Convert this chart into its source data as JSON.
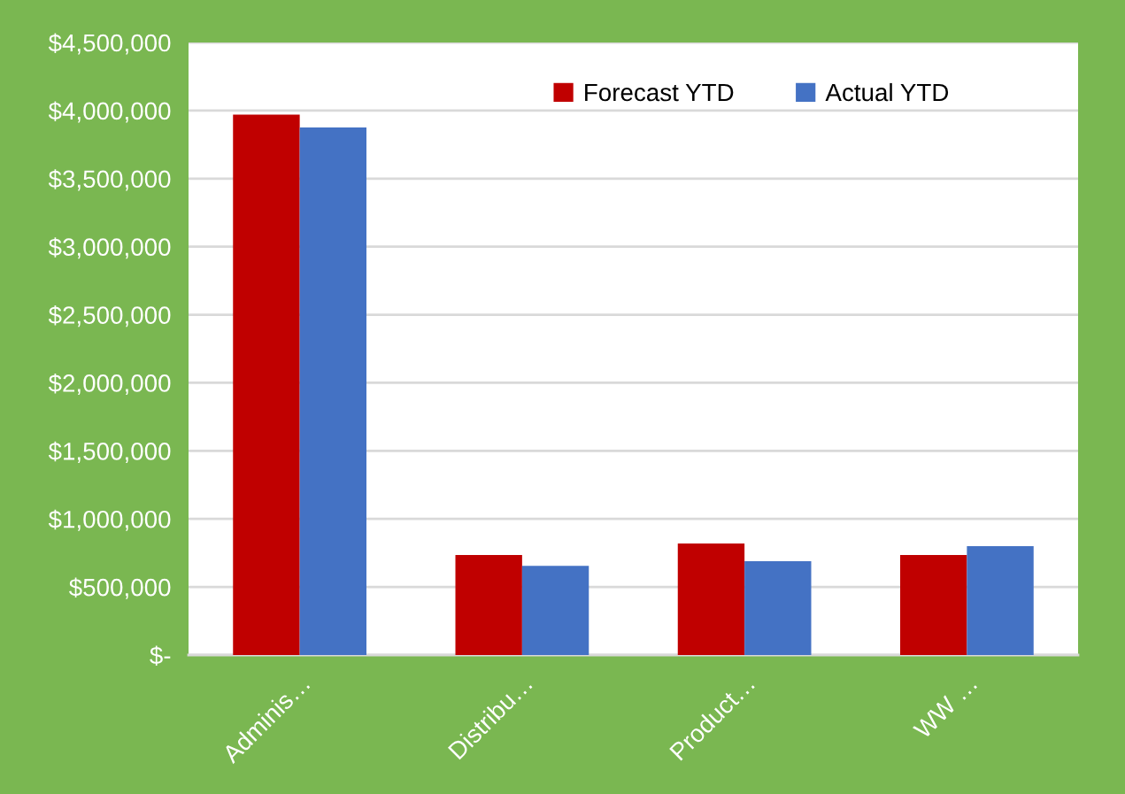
{
  "chart_data": {
    "type": "bar",
    "categories": [
      "Adminis…",
      "Distribu…",
      "Product…",
      "WW …"
    ],
    "series": [
      {
        "name": "Forecast YTD",
        "color": "#c00000",
        "values": [
          3970000,
          735000,
          820000,
          735000
        ]
      },
      {
        "name": "Actual YTD",
        "color": "#4472c4",
        "values": [
          3875000,
          655000,
          690000,
          800000
        ]
      }
    ],
    "ylim": [
      0,
      4500000
    ],
    "yticks": [
      {
        "value": 0,
        "label": "$-"
      },
      {
        "value": 500000,
        "label": "$500,000"
      },
      {
        "value": 1000000,
        "label": "$1,000,000"
      },
      {
        "value": 1500000,
        "label": "$1,500,000"
      },
      {
        "value": 2000000,
        "label": "$2,000,000"
      },
      {
        "value": 2500000,
        "label": "$2,500,000"
      },
      {
        "value": 3000000,
        "label": "$3,000,000"
      },
      {
        "value": 3500000,
        "label": "$3,500,000"
      },
      {
        "value": 4000000,
        "label": "$4,000,000"
      },
      {
        "value": 4500000,
        "label": "$4,500,000"
      }
    ],
    "grid": "y",
    "legend": "top right"
  }
}
